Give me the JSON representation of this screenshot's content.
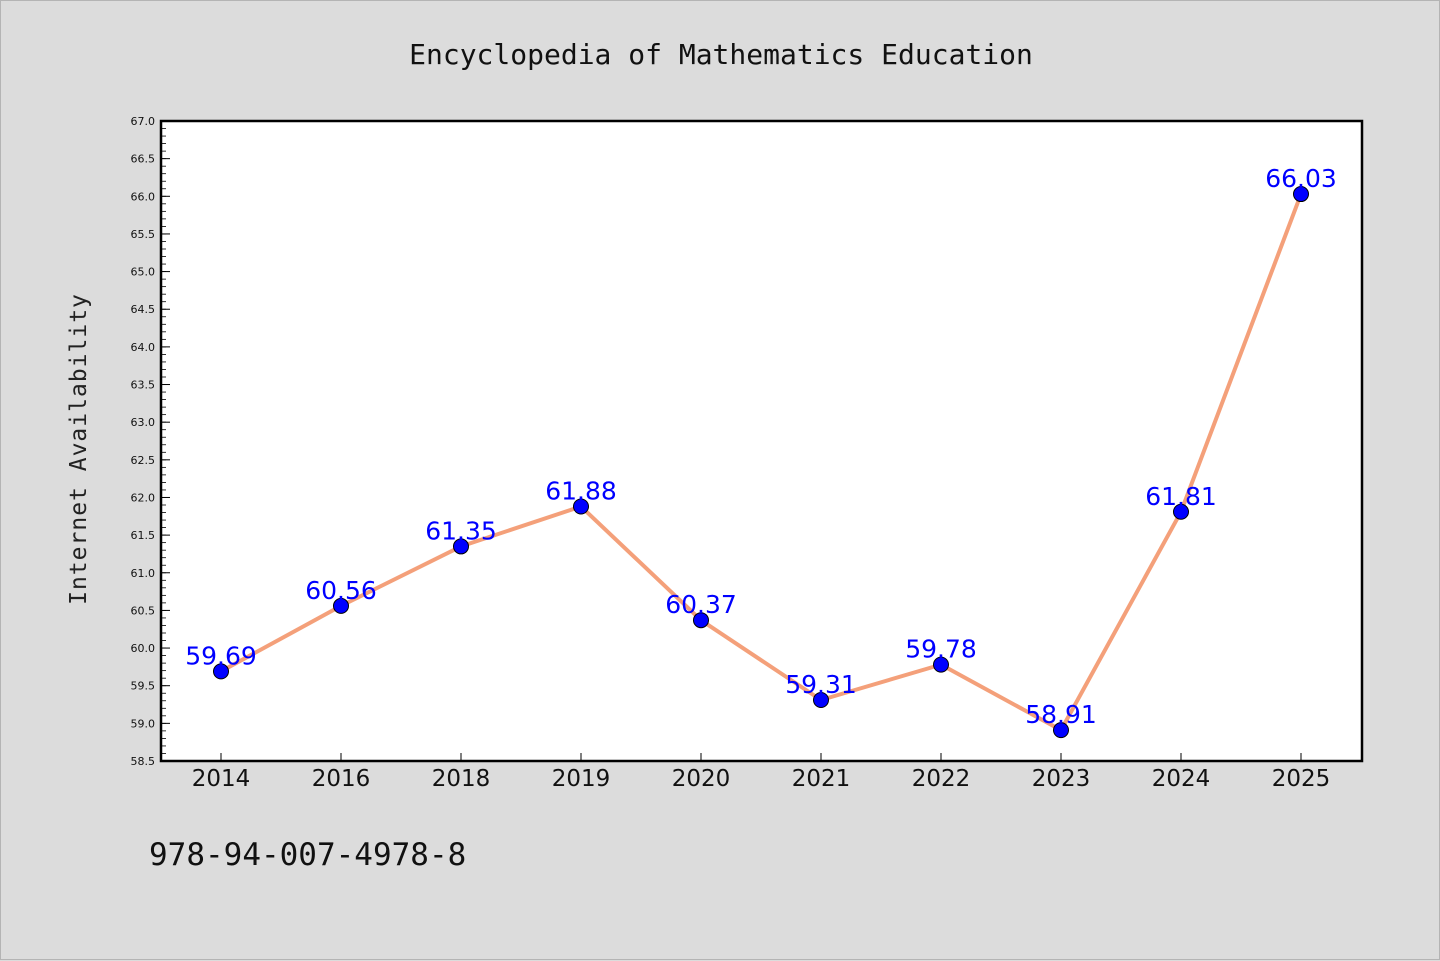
{
  "footer_text": "978-94-007-4978-8",
  "chart_data": {
    "type": "line",
    "title": "Encyclopedia of Mathematics Education",
    "xlabel": "",
    "ylabel": "Internet Availability",
    "categories": [
      "2014",
      "2016",
      "2018",
      "2019",
      "2020",
      "2021",
      "2022",
      "2023",
      "2024",
      "2025"
    ],
    "values": [
      59.69,
      60.56,
      61.35,
      61.88,
      60.37,
      59.31,
      59.78,
      58.91,
      61.81,
      66.03
    ],
    "data_labels": [
      "59.69",
      "60.56",
      "61.35",
      "61.88",
      "60.37",
      "59.31",
      "59.78",
      "58.91",
      "61.81",
      "66.03"
    ],
    "ylim": [
      58.5,
      67.0
    ],
    "yticks": [
      "58.5",
      "59.0",
      "59.5",
      "60.0",
      "60.5",
      "61.0",
      "61.5",
      "62.0",
      "62.5",
      "63.0",
      "63.5",
      "64.0",
      "64.5",
      "65.0",
      "65.5",
      "66.0",
      "66.5",
      "67.0"
    ],
    "grid": false,
    "line_color": "#f4a07a",
    "marker_color": "#0000ff",
    "label_color": "#0000ff"
  }
}
